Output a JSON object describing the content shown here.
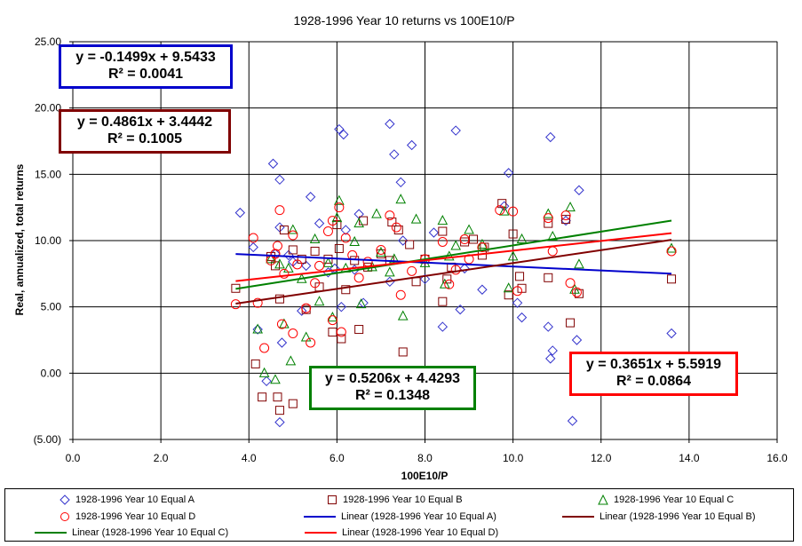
{
  "chart_data": {
    "type": "scatter",
    "title": "1928-1996 Year 10 returns vs 100E10/P",
    "xlabel": "100E10/P",
    "ylabel": "Real, annualized, total returns",
    "xlim": [
      0,
      16
    ],
    "ylim": [
      -5,
      25
    ],
    "x_ticks": [
      "0.0",
      "2.0",
      "4.0",
      "6.0",
      "8.0",
      "10.0",
      "12.0",
      "14.0",
      "16.0"
    ],
    "y_ticks": [
      "(5.00)",
      "0.00",
      "5.00",
      "10.00",
      "15.00",
      "20.00",
      "25.00"
    ],
    "grid": true,
    "legend_position": "bottom",
    "colors": {
      "A": "#3333cc",
      "B": "#800000",
      "C": "#008000",
      "D": "#ff0000"
    },
    "series": [
      {
        "name": "1928-1996 Year 10 Equal A",
        "marker": "diamond",
        "color": "#3333cc",
        "points": [
          [
            3.8,
            12.1
          ],
          [
            4.1,
            9.5
          ],
          [
            4.2,
            3.3
          ],
          [
            4.4,
            -0.6
          ],
          [
            4.55,
            15.8
          ],
          [
            4.6,
            9.0
          ],
          [
            4.7,
            14.6
          ],
          [
            4.7,
            11.0
          ],
          [
            4.75,
            2.3
          ],
          [
            4.7,
            -3.7
          ],
          [
            4.9,
            8.9
          ],
          [
            5.0,
            8.4
          ],
          [
            5.2,
            4.7
          ],
          [
            5.3,
            8.1
          ],
          [
            5.4,
            13.3
          ],
          [
            5.6,
            11.3
          ],
          [
            5.8,
            7.6
          ],
          [
            5.95,
            7.9
          ],
          [
            6.05,
            18.4
          ],
          [
            6.15,
            18.0
          ],
          [
            6.2,
            10.8
          ],
          [
            6.1,
            5.0
          ],
          [
            6.4,
            7.8
          ],
          [
            6.5,
            12.0
          ],
          [
            6.6,
            5.3
          ],
          [
            7.2,
            18.8
          ],
          [
            7.3,
            16.5
          ],
          [
            7.45,
            14.4
          ],
          [
            7.5,
            10.0
          ],
          [
            7.7,
            17.2
          ],
          [
            7.2,
            6.9
          ],
          [
            8.0,
            7.1
          ],
          [
            8.2,
            10.6
          ],
          [
            8.4,
            3.5
          ],
          [
            8.7,
            18.3
          ],
          [
            8.8,
            4.8
          ],
          [
            8.9,
            7.9
          ],
          [
            9.3,
            6.3
          ],
          [
            9.9,
            15.1
          ],
          [
            9.8,
            12.6
          ],
          [
            10.1,
            5.3
          ],
          [
            10.2,
            4.2
          ],
          [
            10.85,
            17.8
          ],
          [
            10.8,
            3.5
          ],
          [
            10.85,
            1.1
          ],
          [
            10.9,
            1.7
          ],
          [
            11.2,
            11.5
          ],
          [
            11.35,
            -3.6
          ],
          [
            11.5,
            13.8
          ],
          [
            11.45,
            2.5
          ],
          [
            13.6,
            3.0
          ]
        ]
      },
      {
        "name": "1928-1996 Year 10 Equal B",
        "marker": "square",
        "color": "#800000",
        "points": [
          [
            3.7,
            6.4
          ],
          [
            4.15,
            0.7
          ],
          [
            4.3,
            -1.8
          ],
          [
            4.5,
            8.8
          ],
          [
            4.6,
            8.1
          ],
          [
            4.65,
            -1.8
          ],
          [
            4.7,
            -2.8
          ],
          [
            4.7,
            5.6
          ],
          [
            4.8,
            10.8
          ],
          [
            5.0,
            -2.3
          ],
          [
            5.0,
            9.3
          ],
          [
            5.2,
            8.6
          ],
          [
            5.3,
            4.8
          ],
          [
            5.5,
            9.2
          ],
          [
            5.6,
            6.5
          ],
          [
            5.8,
            8.6
          ],
          [
            5.9,
            3.1
          ],
          [
            6.0,
            11.2
          ],
          [
            6.05,
            9.4
          ],
          [
            6.1,
            2.6
          ],
          [
            6.2,
            6.3
          ],
          [
            6.4,
            8.5
          ],
          [
            6.5,
            3.3
          ],
          [
            6.6,
            11.5
          ],
          [
            6.7,
            8.0
          ],
          [
            7.0,
            9.0
          ],
          [
            7.2,
            8.5
          ],
          [
            7.25,
            11.4
          ],
          [
            7.4,
            10.8
          ],
          [
            7.5,
            1.6
          ],
          [
            7.65,
            9.7
          ],
          [
            7.8,
            6.9
          ],
          [
            8.0,
            8.6
          ],
          [
            8.4,
            10.7
          ],
          [
            8.4,
            5.4
          ],
          [
            8.5,
            7.1
          ],
          [
            8.6,
            8.0
          ],
          [
            8.9,
            9.9
          ],
          [
            9.1,
            10.1
          ],
          [
            9.3,
            8.9
          ],
          [
            9.35,
            9.5
          ],
          [
            9.75,
            12.8
          ],
          [
            9.9,
            5.9
          ],
          [
            10.0,
            10.5
          ],
          [
            10.15,
            7.3
          ],
          [
            10.2,
            6.4
          ],
          [
            10.8,
            7.2
          ],
          [
            10.8,
            11.3
          ],
          [
            11.2,
            11.6
          ],
          [
            11.3,
            3.8
          ],
          [
            11.5,
            6.0
          ],
          [
            13.6,
            7.1
          ]
        ]
      },
      {
        "name": "1928-1996 Year 10 Equal C",
        "marker": "triangle",
        "color": "#008000",
        "points": [
          [
            4.2,
            3.3
          ],
          [
            4.35,
            0.0
          ],
          [
            4.5,
            8.6
          ],
          [
            4.6,
            -0.5
          ],
          [
            4.7,
            8.2
          ],
          [
            4.8,
            3.7
          ],
          [
            4.9,
            7.9
          ],
          [
            4.95,
            0.9
          ],
          [
            5.0,
            10.8
          ],
          [
            5.2,
            7.1
          ],
          [
            5.3,
            2.7
          ],
          [
            5.5,
            10.1
          ],
          [
            5.6,
            5.4
          ],
          [
            5.8,
            8.3
          ],
          [
            5.9,
            4.2
          ],
          [
            6.0,
            11.7
          ],
          [
            6.05,
            13.0
          ],
          [
            6.2,
            7.9
          ],
          [
            6.4,
            9.9
          ],
          [
            6.5,
            11.3
          ],
          [
            6.55,
            5.2
          ],
          [
            6.8,
            8.0
          ],
          [
            6.9,
            12.0
          ],
          [
            7.0,
            9.1
          ],
          [
            7.2,
            7.6
          ],
          [
            7.3,
            8.6
          ],
          [
            7.45,
            13.1
          ],
          [
            7.5,
            4.3
          ],
          [
            7.8,
            11.6
          ],
          [
            8.0,
            8.3
          ],
          [
            8.4,
            11.5
          ],
          [
            8.45,
            6.7
          ],
          [
            8.55,
            8.8
          ],
          [
            8.7,
            9.6
          ],
          [
            9.0,
            10.8
          ],
          [
            9.3,
            9.7
          ],
          [
            9.8,
            12.2
          ],
          [
            9.9,
            6.4
          ],
          [
            10.0,
            8.8
          ],
          [
            10.2,
            10.1
          ],
          [
            10.8,
            12.0
          ],
          [
            10.9,
            10.3
          ],
          [
            11.3,
            12.5
          ],
          [
            11.4,
            6.3
          ],
          [
            11.5,
            8.2
          ],
          [
            13.6,
            9.4
          ]
        ]
      },
      {
        "name": "1928-1996 Year 10 Equal D",
        "marker": "circle",
        "color": "#ff0000",
        "points": [
          [
            3.7,
            5.2
          ],
          [
            4.1,
            10.2
          ],
          [
            4.2,
            5.3
          ],
          [
            4.35,
            1.9
          ],
          [
            4.5,
            8.5
          ],
          [
            4.6,
            9.0
          ],
          [
            4.65,
            9.6
          ],
          [
            4.7,
            12.3
          ],
          [
            4.75,
            3.7
          ],
          [
            4.8,
            7.5
          ],
          [
            5.0,
            3.0
          ],
          [
            5.0,
            10.4
          ],
          [
            5.1,
            8.2
          ],
          [
            5.3,
            4.9
          ],
          [
            5.4,
            2.3
          ],
          [
            5.5,
            6.8
          ],
          [
            5.6,
            8.1
          ],
          [
            5.8,
            10.7
          ],
          [
            5.9,
            11.5
          ],
          [
            5.9,
            4.0
          ],
          [
            6.05,
            12.5
          ],
          [
            6.1,
            3.1
          ],
          [
            6.2,
            10.2
          ],
          [
            6.35,
            8.9
          ],
          [
            6.5,
            7.2
          ],
          [
            6.7,
            8.4
          ],
          [
            7.0,
            9.3
          ],
          [
            7.2,
            11.9
          ],
          [
            7.35,
            11.0
          ],
          [
            7.45,
            5.9
          ],
          [
            7.7,
            7.7
          ],
          [
            8.0,
            8.6
          ],
          [
            8.4,
            9.9
          ],
          [
            8.55,
            6.7
          ],
          [
            8.7,
            7.8
          ],
          [
            8.9,
            10.1
          ],
          [
            9.0,
            8.6
          ],
          [
            9.3,
            9.5
          ],
          [
            9.7,
            12.3
          ],
          [
            10.0,
            12.2
          ],
          [
            10.1,
            6.2
          ],
          [
            10.8,
            11.7
          ],
          [
            10.9,
            9.2
          ],
          [
            11.2,
            11.9
          ],
          [
            11.3,
            6.8
          ],
          [
            11.45,
            6.1
          ],
          [
            13.6,
            9.2
          ]
        ]
      }
    ],
    "trendlines": [
      {
        "name": "Linear (1928-1996 Year 10 Equal A)",
        "color": "#0000cc",
        "slope": -0.1499,
        "intercept": 9.5433,
        "x_range": [
          3.7,
          13.6
        ]
      },
      {
        "name": "Linear (1928-1996 Year 10 Equal B)",
        "color": "#800000",
        "slope": 0.4861,
        "intercept": 3.4442,
        "x_range": [
          3.7,
          13.6
        ]
      },
      {
        "name": "Linear (1928-1996 Year 10 Equal C)",
        "color": "#008000",
        "slope": 0.5206,
        "intercept": 4.4293,
        "x_range": [
          3.7,
          13.6
        ]
      },
      {
        "name": "Linear (1928-1996 Year 10 Equal D)",
        "color": "#ff0000",
        "slope": 0.3651,
        "intercept": 5.5919,
        "x_range": [
          3.7,
          13.6
        ]
      }
    ],
    "equations": {
      "A": {
        "eq": "y = -0.1499x + 9.5433",
        "r2": "R² = 0.0041",
        "border": "#0000cc"
      },
      "B": {
        "eq": "y = 0.4861x + 3.4442",
        "r2": "R² = 0.1005",
        "border": "#800000"
      },
      "C": {
        "eq": "y = 0.5206x + 4.4293",
        "r2": "R² = 0.1348",
        "border": "#008000"
      },
      "D": {
        "eq": "y = 0.3651x + 5.5919",
        "r2": "R² = 0.0864",
        "border": "#ff0000"
      }
    }
  },
  "legend": [
    "1928-1996 Year 10 Equal A",
    "1928-1996 Year 10 Equal B",
    "1928-1996 Year 10 Equal C",
    "1928-1996 Year 10 Equal D",
    "Linear (1928-1996 Year 10 Equal A)",
    "Linear (1928-1996 Year 10 Equal B)",
    "Linear (1928-1996 Year 10 Equal C)",
    "Linear (1928-1996 Year 10 Equal D)"
  ]
}
